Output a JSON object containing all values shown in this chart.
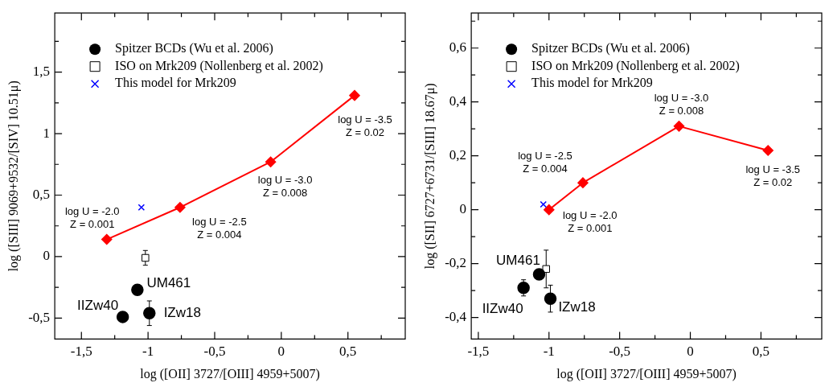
{
  "chart_data": [
    {
      "type": "scatter",
      "xlabel": "log ([OII] 3727/[OIII] 4959+5007)",
      "ylabel": "log ([SIII] 9069+9532/[SIV] 10.51μ)",
      "xlim": [
        -1.7,
        0.93
      ],
      "ylim": [
        -0.67,
        1.98
      ],
      "legend": "top left",
      "xticks": [
        {
          "value": -1.5,
          "label": "-1,5"
        },
        {
          "value": -1.25,
          "label": null
        },
        {
          "value": -1,
          "label": "-1"
        },
        {
          "value": -0.75,
          "label": null
        },
        {
          "value": -0.5,
          "label": "-0,5"
        },
        {
          "value": -0.25,
          "label": null
        },
        {
          "value": 0,
          "label": "0"
        },
        {
          "value": 0.25,
          "label": null
        },
        {
          "value": 0.5,
          "label": "0,5"
        },
        {
          "value": 0.75,
          "label": null
        }
      ],
      "yticks": [
        {
          "value": -0.5,
          "label": "-0,5"
        },
        {
          "value": -0.25,
          "label": null
        },
        {
          "value": 0,
          "label": "0"
        },
        {
          "value": 0.25,
          "label": null
        },
        {
          "value": 0.5,
          "label": "0,5"
        },
        {
          "value": 0.75,
          "label": null
        },
        {
          "value": 1,
          "label": "1"
        },
        {
          "value": 1.25,
          "label": null
        },
        {
          "value": 1.5,
          "label": "1,5"
        },
        {
          "value": 1.75,
          "label": null
        }
      ],
      "series": [
        {
          "name": "Spitzer BCDs (Wu et al. 2006)",
          "type": "scatter",
          "marker": "circle",
          "color": "#000000",
          "x": [
            -1.08,
            -1.19,
            -0.99
          ],
          "values": [
            -0.27,
            -0.49,
            -0.46
          ],
          "errors": [
            null,
            null,
            0.1
          ]
        },
        {
          "name": "ISO on Mrk209 (Nollenberg et al. 2002)",
          "type": "scatter",
          "marker": "square",
          "color": "#000000",
          "x": [
            -1.02
          ],
          "values": [
            -0.01
          ],
          "errors": [
            0.06
          ]
        },
        {
          "name": "This model for Mrk209",
          "type": "scatter",
          "marker": "cross",
          "color": "#0000ff",
          "x": [
            -1.05
          ],
          "values": [
            0.4
          ]
        },
        {
          "type": "line",
          "marker": "diamond",
          "color": "#ff0000",
          "x": [
            -1.31,
            -0.76,
            -0.08,
            0.55
          ],
          "values": [
            0.14,
            0.4,
            0.77,
            1.31
          ]
        }
      ],
      "annotations": [
        {
          "text": "log U = -2.0\nZ = 0.001",
          "x": -1.31,
          "y": 0.14
        },
        {
          "text": "log U = -2.5\nZ = 0.004",
          "x": -0.76,
          "y": 0.4
        },
        {
          "text": "log U = -3.0\nZ = 0.008",
          "x": -0.08,
          "y": 0.77
        },
        {
          "text": "log U = -3.5\nZ = 0.02",
          "x": 0.55,
          "y": 1.31
        },
        {
          "text": "UM461",
          "x": -1.08,
          "y": -0.27
        },
        {
          "text": "IIZw40",
          "x": -1.19,
          "y": -0.49
        },
        {
          "text": "IZw18",
          "x": -0.99,
          "y": -0.46
        }
      ]
    },
    {
      "type": "scatter",
      "xlabel": "log ([OII] 3727/[OIII] 4959+5007)",
      "ylabel": "log ([SII] 6727+6731/[SIII] 18.67μ)",
      "xlim": [
        -1.55,
        0.93
      ],
      "ylim": [
        -0.48,
        0.73
      ],
      "legend": "top left",
      "xticks": [
        {
          "value": -1.5,
          "label": "-1,5"
        },
        {
          "value": -1.25,
          "label": null
        },
        {
          "value": -1,
          "label": "-1"
        },
        {
          "value": -0.75,
          "label": null
        },
        {
          "value": -0.5,
          "label": "-0,5"
        },
        {
          "value": -0.25,
          "label": null
        },
        {
          "value": 0,
          "label": "0"
        },
        {
          "value": 0.25,
          "label": null
        },
        {
          "value": 0.5,
          "label": "0,5"
        },
        {
          "value": 0.75,
          "label": null
        }
      ],
      "yticks": [
        {
          "value": -0.4,
          "label": "-0,4"
        },
        {
          "value": -0.3,
          "label": null
        },
        {
          "value": -0.2,
          "label": "-0,2"
        },
        {
          "value": -0.1,
          "label": null
        },
        {
          "value": 0,
          "label": "0"
        },
        {
          "value": 0.1,
          "label": null
        },
        {
          "value": 0.2,
          "label": "0,2"
        },
        {
          "value": 0.3,
          "label": null
        },
        {
          "value": 0.4,
          "label": "0,4"
        },
        {
          "value": 0.5,
          "label": null
        },
        {
          "value": 0.6,
          "label": "0,6"
        },
        {
          "value": 0.7,
          "label": null
        }
      ],
      "series": [
        {
          "name": "Spitzer BCDs (Wu et al. 2006)",
          "type": "scatter",
          "marker": "circle",
          "color": "#000000",
          "x": [
            -1.07,
            -1.18,
            -0.99
          ],
          "values": [
            -0.24,
            -0.29,
            -0.33
          ],
          "errors": [
            null,
            0.03,
            0.05
          ]
        },
        {
          "name": "ISO on Mrk209 (Nollenberg et al. 2002)",
          "type": "scatter",
          "marker": "square",
          "color": "#000000",
          "x": [
            -1.02
          ],
          "values": [
            -0.22
          ],
          "errors": [
            0.07
          ]
        },
        {
          "name": "This model for Mrk209",
          "type": "scatter",
          "marker": "cross",
          "color": "#0000ff",
          "x": [
            -1.04
          ],
          "values": [
            0.02
          ]
        },
        {
          "type": "line",
          "marker": "diamond",
          "color": "#ff0000",
          "x": [
            -1.0,
            -0.76,
            -0.08,
            0.55
          ],
          "values": [
            0.0,
            0.1,
            0.31,
            0.22
          ]
        }
      ],
      "annotations": [
        {
          "text": "log U = -2.5\nZ = 0.004",
          "x": -0.76,
          "y": 0.1
        },
        {
          "text": "log U = -2.0\nZ = 0.001",
          "x": -1.0,
          "y": 0.0
        },
        {
          "text": "log U = -3.0\nZ = 0.008",
          "x": -0.08,
          "y": 0.31
        },
        {
          "text": "log U = -3.5\nZ = 0.02",
          "x": 0.55,
          "y": 0.22
        },
        {
          "text": "UM461",
          "x": -1.07,
          "y": -0.24
        },
        {
          "text": "IIZw40",
          "x": -1.18,
          "y": -0.29
        },
        {
          "text": "IZw18",
          "x": -0.99,
          "y": -0.33
        }
      ]
    }
  ]
}
